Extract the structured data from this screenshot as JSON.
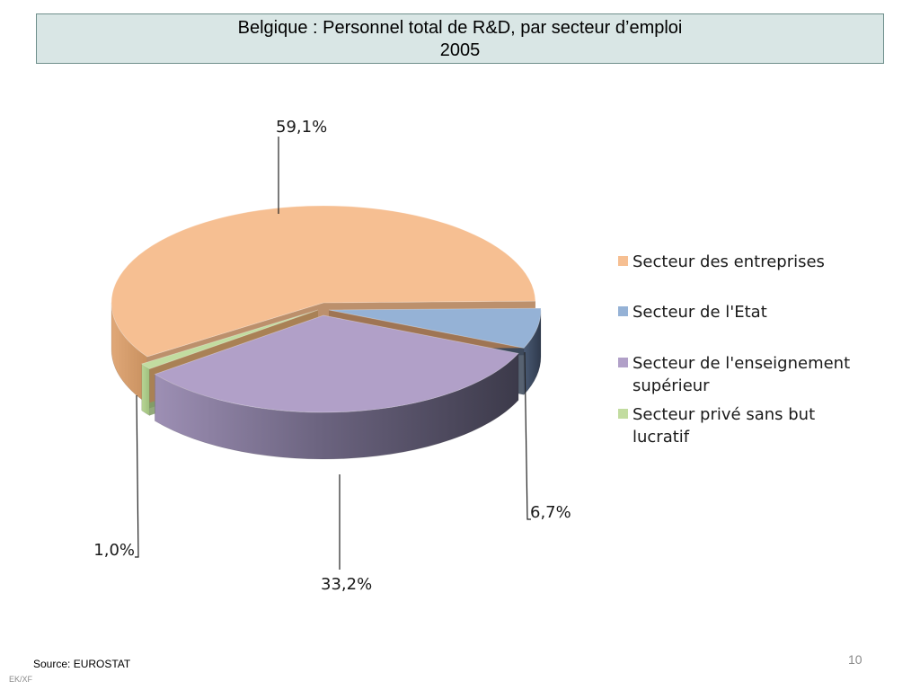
{
  "header": {
    "title_line1": "Belgique : Personnel total de R&D, par secteur d’emploi",
    "title_line2": "2005"
  },
  "chart_data": {
    "type": "pie",
    "title": "Belgique : Personnel total de R&D, par secteur d’emploi 2005",
    "categories": [
      "Secteur des entreprises",
      "Secteur de l'Etat",
      "Secteur de l'enseignement supérieur",
      "Secteur privé sans but lucratif"
    ],
    "values": [
      59.1,
      6.7,
      33.2,
      1.0
    ],
    "value_labels": [
      "59,1%",
      "6,7%",
      "33,2%",
      "1,0%"
    ],
    "colors": [
      "#f6bf92",
      "#95b2d6",
      "#b1a0c8",
      "#c2dca0"
    ],
    "legend": {
      "position": "right",
      "entries": [
        {
          "lines": [
            "Secteur des entreprises"
          ]
        },
        {
          "lines": [
            "Secteur de l'Etat"
          ]
        },
        {
          "lines": [
            "Secteur de l'enseignement",
            "supérieur"
          ]
        },
        {
          "lines": [
            "Secteur privé sans but",
            "lucratif"
          ]
        }
      ]
    },
    "style": "3d-exploded"
  },
  "footer": {
    "source": "Source: EUROSTAT",
    "tag": "EK/XF",
    "page": "10"
  }
}
